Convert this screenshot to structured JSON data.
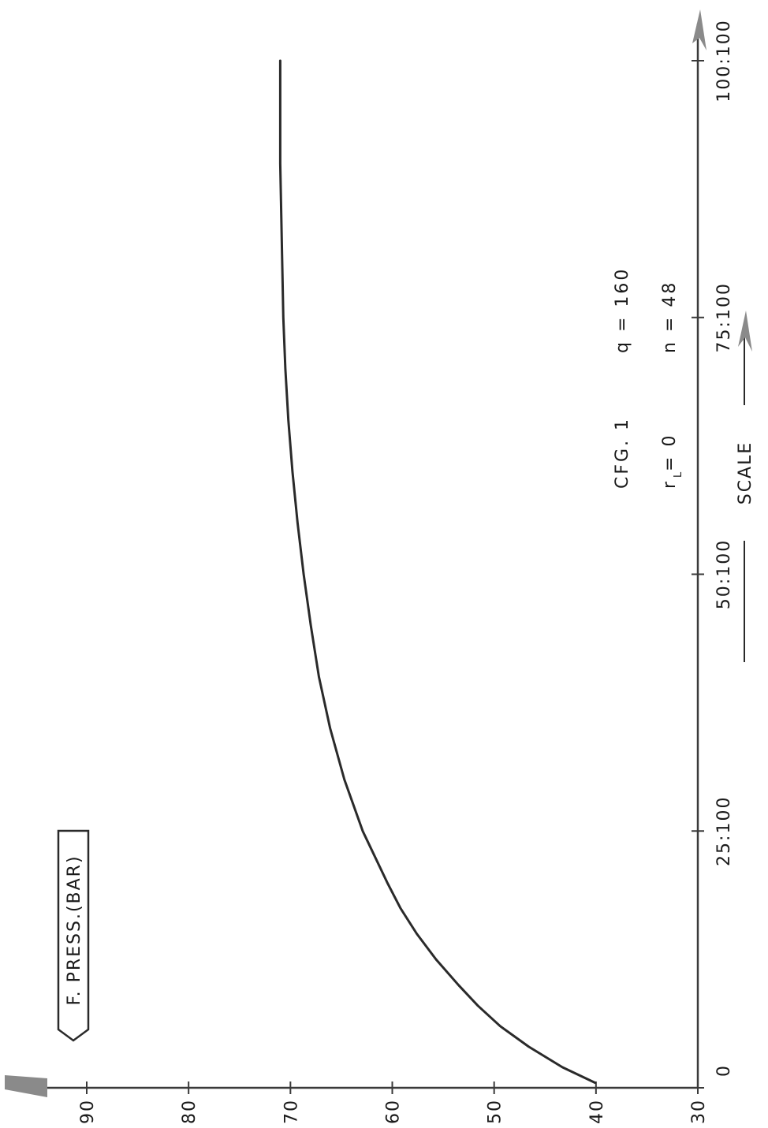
{
  "chart_data": {
    "type": "line",
    "orientation": "rotated-90-clockwise",
    "ylabel": "F. PRESS.(BAR)",
    "xlabel": "SCALE",
    "y_ticks": [
      "30",
      "40",
      "50",
      "60",
      "70",
      "80",
      "90"
    ],
    "y_tick_values": [
      30,
      40,
      50,
      60,
      70,
      80,
      90
    ],
    "ylim": [
      30,
      90
    ],
    "x_ticks": [
      "0",
      "25:100",
      "50:100",
      "75:100",
      "100:100"
    ],
    "x_tick_values": [
      0,
      25,
      50,
      75,
      100
    ],
    "xlim": [
      0,
      100
    ],
    "annotations": {
      "cfg": "CFG. 1",
      "q": "q = 160",
      "r": "r   = 0",
      "r_subscript": "L",
      "n": "n = 48"
    },
    "grid": false,
    "legend": "none",
    "colors": {
      "curve": "#2a2a2a",
      "axis": "#3a3a3a",
      "text": "#1a1a1a"
    },
    "series": [
      {
        "x": [
          0.5,
          2,
          4,
          6,
          8,
          10,
          12.5,
          15,
          17.5,
          20,
          25,
          30,
          35,
          40,
          45,
          50,
          55,
          60,
          65,
          70,
          75,
          80,
          85,
          90,
          95,
          100
        ],
        "y": [
          40.1,
          43.3,
          46.6,
          49.4,
          51.6,
          53.5,
          55.7,
          57.6,
          59.2,
          60.5,
          62.9,
          64.7,
          66.1,
          67.2,
          68.0,
          68.7,
          69.3,
          69.8,
          70.2,
          70.5,
          70.7,
          70.8,
          70.9,
          71.0,
          71.0,
          71.0
        ]
      }
    ]
  }
}
